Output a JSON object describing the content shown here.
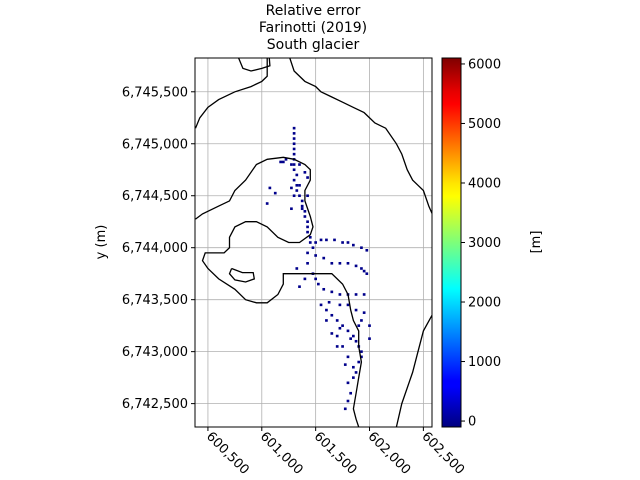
{
  "chart_data": {
    "type": "heatmap",
    "title_lines": [
      "Relative error",
      "Farinotti (2019)",
      "South glacier"
    ],
    "ylabel": "y (m)",
    "xlabel": "",
    "xlim": [
      600380,
      602580
    ],
    "ylim": [
      6742275,
      6745825
    ],
    "x_ticks": [
      600500,
      601000,
      601500,
      602000,
      602500
    ],
    "x_tick_labels": [
      "600,500",
      "601,000",
      "601,500",
      "602,000",
      "602,500"
    ],
    "y_ticks": [
      6742500,
      6743000,
      6743500,
      6744000,
      6744500,
      6745000,
      6745500
    ],
    "y_tick_labels": [
      "6,742,500",
      "6,743,000",
      "6,743,500",
      "6,744,000",
      "6,744,500",
      "6,745,000",
      "6,745,500"
    ],
    "grid": true,
    "colorbar": {
      "colormap": "jet",
      "min": -100,
      "max": 6100,
      "ticks": [
        0,
        1000,
        2000,
        3000,
        4000,
        5000,
        6000
      ],
      "tick_labels": [
        "0",
        "1000",
        "2000",
        "3000",
        "4000",
        "5000",
        "6000"
      ],
      "label": "[m]"
    },
    "pixel_color": "#00008b",
    "pixel_value_approx": 0,
    "pixel_size_m": 25,
    "pixels": [
      [
        601300,
        6745150
      ],
      [
        601300,
        6745100
      ],
      [
        601300,
        6745050
      ],
      [
        601300,
        6745000
      ],
      [
        601300,
        6744950
      ],
      [
        601300,
        6744900
      ],
      [
        601300,
        6744850
      ],
      [
        601300,
        6744800
      ],
      [
        601300,
        6744750
      ],
      [
        601325,
        6744700
      ],
      [
        601300,
        6744650
      ],
      [
        601325,
        6744600
      ],
      [
        601325,
        6744550
      ],
      [
        601350,
        6744500
      ],
      [
        601375,
        6744450
      ],
      [
        601375,
        6744400
      ],
      [
        601400,
        6744350
      ],
      [
        601400,
        6744300
      ],
      [
        601425,
        6744250
      ],
      [
        601425,
        6744200
      ],
      [
        601425,
        6744150
      ],
      [
        601450,
        6744100
      ],
      [
        601450,
        6744050
      ],
      [
        601475,
        6744000
      ],
      [
        601175,
        6744825
      ],
      [
        601200,
        6744825
      ],
      [
        601225,
        6744850
      ],
      [
        601275,
        6744800
      ],
      [
        601350,
        6744800
      ],
      [
        601400,
        6744725
      ],
      [
        601425,
        6744675
      ],
      [
        601350,
        6744600
      ],
      [
        601275,
        6744575
      ],
      [
        601075,
        6744575
      ],
      [
        601125,
        6744525
      ],
      [
        601300,
        6744500
      ],
      [
        601425,
        6744500
      ],
      [
        601050,
        6744425
      ],
      [
        601275,
        6744375
      ],
      [
        601375,
        6744375
      ],
      [
        601500,
        6744050
      ],
      [
        601550,
        6744075
      ],
      [
        601600,
        6744075
      ],
      [
        601675,
        6744075
      ],
      [
        601750,
        6744050
      ],
      [
        601800,
        6744050
      ],
      [
        601850,
        6744025
      ],
      [
        601925,
        6744000
      ],
      [
        601975,
        6743975
      ],
      [
        601425,
        6743950
      ],
      [
        601500,
        6743925
      ],
      [
        601575,
        6743900
      ],
      [
        601650,
        6743850
      ],
      [
        601725,
        6743850
      ],
      [
        601800,
        6743850
      ],
      [
        601875,
        6743825
      ],
      [
        601925,
        6743800
      ],
      [
        601950,
        6743775
      ],
      [
        601975,
        6743750
      ],
      [
        601425,
        6743850
      ],
      [
        601475,
        6743750
      ],
      [
        601500,
        6743700
      ],
      [
        601525,
        6743650
      ],
      [
        601575,
        6743600
      ],
      [
        601650,
        6743575
      ],
      [
        601725,
        6743550
      ],
      [
        601800,
        6743550
      ],
      [
        601875,
        6743550
      ],
      [
        601950,
        6743550
      ],
      [
        601325,
        6743800
      ],
      [
        601400,
        6743700
      ],
      [
        601350,
        6743625
      ],
      [
        601625,
        6743475
      ],
      [
        601725,
        6743450
      ],
      [
        601800,
        6743450
      ],
      [
        601875,
        6743400
      ],
      [
        601950,
        6743375
      ],
      [
        601550,
        6743450
      ],
      [
        601600,
        6743400
      ],
      [
        601650,
        6743350
      ],
      [
        601700,
        6743300
      ],
      [
        601750,
        6743250
      ],
      [
        601800,
        6743200
      ],
      [
        601850,
        6743150
      ],
      [
        601875,
        6743100
      ],
      [
        601900,
        6743050
      ],
      [
        601925,
        6743000
      ],
      [
        601925,
        6742950
      ],
      [
        601900,
        6742900
      ],
      [
        601850,
        6742850
      ],
      [
        601875,
        6742800
      ],
      [
        601850,
        6742750
      ],
      [
        601800,
        6742700
      ],
      [
        601825,
        6742600
      ],
      [
        601800,
        6742525
      ],
      [
        601775,
        6742450
      ],
      [
        601700,
        6743150
      ],
      [
        601750,
        6743050
      ],
      [
        601800,
        6742950
      ],
      [
        601700,
        6743050
      ],
      [
        601775,
        6742875
      ],
      [
        601925,
        6743300
      ],
      [
        602000,
        6743250
      ],
      [
        602000,
        6743125
      ],
      [
        601900,
        6743250
      ],
      [
        601825,
        6743125
      ],
      [
        601650,
        6743175
      ],
      [
        601725,
        6743225
      ],
      [
        601600,
        6743300
      ]
    ],
    "contours": [
      [
        [
          600385,
          6745150
        ],
        [
          600425,
          6745250
        ],
        [
          600500,
          6745350
        ],
        [
          600600,
          6745425
        ],
        [
          600750,
          6745500
        ],
        [
          600900,
          6745550
        ],
        [
          601000,
          6745600
        ],
        [
          601050,
          6745650
        ],
        [
          601050,
          6745750
        ],
        [
          601050,
          6745825
        ]
      ],
      [
        [
          601260,
          6745825
        ],
        [
          601300,
          6745700
        ],
        [
          601400,
          6745600
        ],
        [
          601500,
          6745550
        ],
        [
          601550,
          6745500
        ],
        [
          601650,
          6745450
        ],
        [
          601750,
          6745400
        ],
        [
          601850,
          6745350
        ],
        [
          601950,
          6745300
        ],
        [
          602050,
          6745200
        ],
        [
          602150,
          6745150
        ],
        [
          602250,
          6745000
        ],
        [
          602300,
          6744900
        ],
        [
          602350,
          6744750
        ],
        [
          602400,
          6744650
        ],
        [
          602450,
          6744600
        ],
        [
          602500,
          6744550
        ],
        [
          602550,
          6744400
        ],
        [
          602580,
          6744330
        ]
      ],
      [
        [
          600785,
          6745825
        ],
        [
          600825,
          6745725
        ],
        [
          600900,
          6745700
        ],
        [
          601000,
          6745725
        ],
        [
          601075,
          6745750
        ],
        [
          601070,
          6745825
        ]
      ],
      [
        [
          602580,
          6743350
        ],
        [
          602500,
          6743200
        ],
        [
          602450,
          6743000
        ],
        [
          602400,
          6742800
        ],
        [
          602300,
          6742500
        ],
        [
          602250,
          6742275
        ]
      ],
      [
        [
          600385,
          6744275
        ],
        [
          600450,
          6744325
        ],
        [
          600600,
          6744400
        ],
        [
          600700,
          6744450
        ],
        [
          600750,
          6744550
        ],
        [
          600850,
          6744650
        ],
        [
          600950,
          6744800
        ],
        [
          601050,
          6744850
        ],
        [
          601200,
          6744870
        ],
        [
          601300,
          6744850
        ],
        [
          601400,
          6744800
        ],
        [
          601450,
          6744750
        ],
        [
          601450,
          6744650
        ],
        [
          601400,
          6744550
        ],
        [
          601400,
          6744450
        ],
        [
          601450,
          6744300
        ],
        [
          601475,
          6744200
        ],
        [
          601450,
          6744125
        ],
        [
          601350,
          6744050
        ],
        [
          601250,
          6744050
        ],
        [
          601150,
          6744100
        ],
        [
          601050,
          6744200
        ],
        [
          600950,
          6744250
        ],
        [
          600850,
          6744250
        ],
        [
          600750,
          6744200
        ],
        [
          600700,
          6744100
        ],
        [
          600700,
          6744000
        ],
        [
          600650,
          6743950
        ],
        [
          600550,
          6743950
        ],
        [
          600475,
          6743950
        ],
        [
          600450,
          6743875
        ],
        [
          600500,
          6743800
        ],
        [
          600600,
          6743700
        ],
        [
          600750,
          6743600
        ],
        [
          600850,
          6743500
        ],
        [
          600950,
          6743470
        ],
        [
          601050,
          6743470
        ],
        [
          601150,
          6743550
        ],
        [
          601200,
          6743650
        ],
        [
          601200,
          6743750
        ],
        [
          601300,
          6743750
        ],
        [
          601500,
          6743750
        ],
        [
          601650,
          6743750
        ],
        [
          601750,
          6743650
        ],
        [
          601800,
          6743550
        ],
        [
          601825,
          6743400
        ],
        [
          601850,
          6743300
        ],
        [
          601900,
          6743200
        ],
        [
          601900,
          6743050
        ],
        [
          601925,
          6742900
        ],
        [
          601900,
          6742750
        ],
        [
          601875,
          6742600
        ],
        [
          601850,
          6742450
        ],
        [
          601875,
          6742350
        ],
        [
          601900,
          6742275
        ]
      ],
      [
        [
          600720,
          6743800
        ],
        [
          600820,
          6743760
        ],
        [
          600920,
          6743760
        ],
        [
          600930,
          6743700
        ],
        [
          600850,
          6743670
        ],
        [
          600750,
          6743690
        ],
        [
          600700,
          6743750
        ],
        [
          600720,
          6743800
        ]
      ]
    ]
  }
}
